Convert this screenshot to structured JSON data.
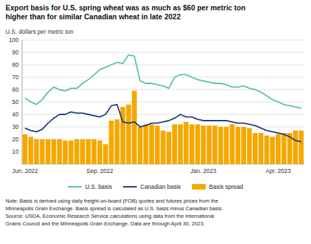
{
  "chart_data": {
    "type": "bar",
    "title": "Export basis for U.S. spring wheat was as much as $60 per metric ton\nhigher than for similar Canadian wheat in late 2022",
    "ylabel": "U.S. dollars per metric ton",
    "note": "Note: Basis is derived using daily freight-on-board (FOB) quotes and futures prices from the\nMinneapolis Grain Exchange. Basis spread is calculated as U.S. basis minus Canadian basis.\nSource: USDA, Economic Research Service calculations using data from the International\nGrains Council and the Minneapolis Grain Exchange. Data are through April 30, 2023.",
    "categories": [
      "Jun. 2022",
      null,
      null,
      null,
      null,
      null,
      null,
      null,
      null,
      null,
      null,
      null,
      null,
      "Sep. 2022",
      null,
      null,
      null,
      null,
      null,
      null,
      null,
      null,
      null,
      null,
      null,
      null,
      null,
      null,
      null,
      null,
      null,
      "Jan. 2023",
      null,
      null,
      null,
      null,
      null,
      null,
      null,
      null,
      null,
      null,
      null,
      null,
      "Apr. 2023",
      null,
      null,
      null,
      null
    ],
    "series": [
      {
        "name": "U.S. basis",
        "type": "line",
        "color": "#5abfa0",
        "values": [
          53,
          50,
          48,
          52,
          58,
          62,
          60,
          59,
          61,
          61,
          65,
          68,
          72,
          76,
          78,
          80,
          82,
          81,
          88,
          87,
          67,
          65,
          65,
          64,
          63,
          61,
          70,
          72,
          72,
          70,
          68,
          67,
          66,
          65,
          65,
          64,
          62,
          62,
          63,
          61,
          60,
          58,
          55,
          52,
          50,
          48,
          47,
          46,
          45
        ]
      },
      {
        "name": "Canadian basis",
        "type": "line",
        "color": "#1a3a7a",
        "values": [
          29,
          27,
          26,
          28,
          33,
          37,
          40,
          40,
          42,
          41,
          41,
          40,
          39,
          38,
          40,
          47,
          48,
          34,
          33,
          34,
          30,
          31,
          33,
          33,
          34,
          35,
          37,
          40,
          38,
          38,
          36,
          35,
          35,
          35,
          35,
          35,
          34,
          33,
          33,
          32,
          31,
          29,
          27,
          26,
          25,
          24,
          22,
          19,
          18
        ]
      },
      {
        "name": "Basis spread",
        "type": "bar",
        "color": "#f5a800",
        "values": [
          24,
          22,
          20,
          20,
          20,
          20,
          20,
          19,
          19,
          20,
          20,
          20,
          20,
          19,
          16,
          35,
          36,
          46,
          48,
          59,
          30,
          32,
          32,
          31,
          27,
          26,
          32,
          32,
          34,
          32,
          32,
          31,
          31,
          31,
          30,
          30,
          32,
          30,
          30,
          29,
          25,
          25,
          23,
          22,
          24,
          25,
          25,
          27,
          27
        ]
      }
    ],
    "ylim": [
      0,
      100
    ],
    "yticks": [
      10,
      20,
      30,
      40,
      50,
      60,
      70,
      80,
      90,
      100
    ],
    "grid": true,
    "legend": "bottom"
  }
}
